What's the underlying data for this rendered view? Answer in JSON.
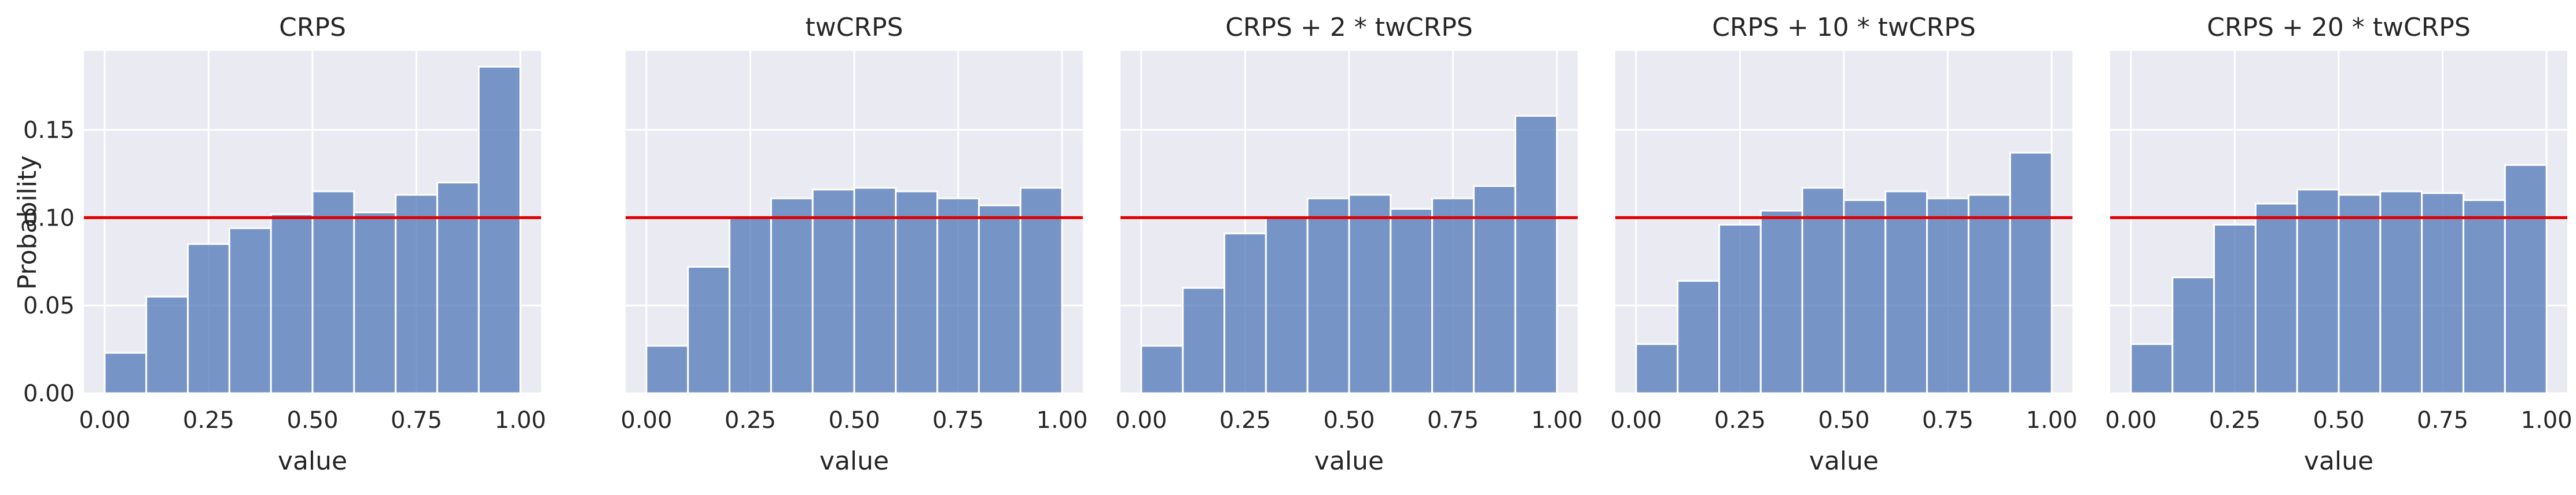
{
  "figure": {
    "ylabel": "Probability",
    "yticks": [
      "0.00",
      "0.05",
      "0.10",
      "0.15"
    ],
    "ytick_values": [
      0.0,
      0.05,
      0.1,
      0.15
    ],
    "xticks": [
      "0.00",
      "0.25",
      "0.50",
      "0.75",
      "1.00"
    ],
    "xtick_values": [
      0.0,
      0.25,
      0.5,
      0.75,
      1.0
    ],
    "bar_color": "#5a7ebb",
    "reference_color": "#e00000",
    "background": "#eaeaf2"
  },
  "chart_data": [
    {
      "type": "bar",
      "title": "CRPS",
      "xlabel": "value",
      "ylabel": "Probability",
      "bin_edges": [
        0.0,
        0.1,
        0.2,
        0.3,
        0.4,
        0.5,
        0.6,
        0.7,
        0.8,
        0.9,
        1.0
      ],
      "values": [
        0.023,
        0.055,
        0.085,
        0.094,
        0.102,
        0.115,
        0.103,
        0.113,
        0.12,
        0.186
      ],
      "reference_line": 0.1,
      "xlim": [
        -0.05,
        1.05
      ],
      "ylim": [
        0,
        0.195
      ]
    },
    {
      "type": "bar",
      "title": "twCRPS",
      "xlabel": "value",
      "ylabel": "",
      "bin_edges": [
        0.0,
        0.1,
        0.2,
        0.3,
        0.4,
        0.5,
        0.6,
        0.7,
        0.8,
        0.9,
        1.0
      ],
      "values": [
        0.027,
        0.072,
        0.1,
        0.111,
        0.116,
        0.117,
        0.115,
        0.111,
        0.107,
        0.117
      ],
      "reference_line": 0.1,
      "xlim": [
        -0.05,
        1.05
      ],
      "ylim": [
        0,
        0.195
      ]
    },
    {
      "type": "bar",
      "title": "CRPS + 2 * twCRPS",
      "xlabel": "value",
      "ylabel": "",
      "bin_edges": [
        0.0,
        0.1,
        0.2,
        0.3,
        0.4,
        0.5,
        0.6,
        0.7,
        0.8,
        0.9,
        1.0
      ],
      "values": [
        0.027,
        0.06,
        0.091,
        0.1,
        0.111,
        0.113,
        0.105,
        0.111,
        0.118,
        0.158
      ],
      "reference_line": 0.1,
      "xlim": [
        -0.05,
        1.05
      ],
      "ylim": [
        0,
        0.195
      ]
    },
    {
      "type": "bar",
      "title": "CRPS + 10 * twCRPS",
      "xlabel": "value",
      "ylabel": "",
      "bin_edges": [
        0.0,
        0.1,
        0.2,
        0.3,
        0.4,
        0.5,
        0.6,
        0.7,
        0.8,
        0.9,
        1.0
      ],
      "values": [
        0.028,
        0.064,
        0.096,
        0.104,
        0.117,
        0.11,
        0.115,
        0.111,
        0.113,
        0.137
      ],
      "reference_line": 0.1,
      "xlim": [
        -0.05,
        1.05
      ],
      "ylim": [
        0,
        0.195
      ]
    },
    {
      "type": "bar",
      "title": "CRPS + 20 * twCRPS",
      "xlabel": "value",
      "ylabel": "",
      "bin_edges": [
        0.0,
        0.1,
        0.2,
        0.3,
        0.4,
        0.5,
        0.6,
        0.7,
        0.8,
        0.9,
        1.0
      ],
      "values": [
        0.028,
        0.066,
        0.096,
        0.108,
        0.116,
        0.113,
        0.115,
        0.114,
        0.11,
        0.13
      ],
      "reference_line": 0.1,
      "xlim": [
        -0.05,
        1.05
      ],
      "ylim": [
        0,
        0.195
      ]
    }
  ]
}
